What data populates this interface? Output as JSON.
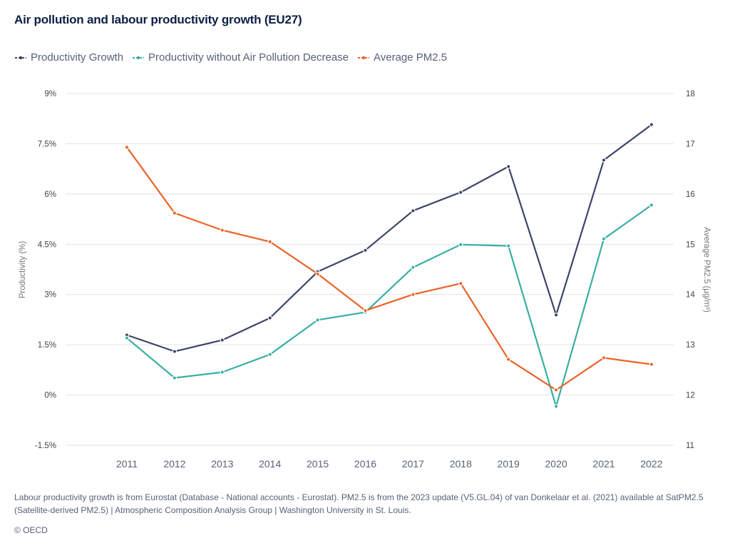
{
  "chart_data": {
    "type": "line",
    "title": "Air pollution and labour productivity growth (EU27)",
    "x": [
      "2011",
      "2012",
      "2013",
      "2014",
      "2015",
      "2016",
      "2017",
      "2018",
      "2019",
      "2020",
      "2021",
      "2022"
    ],
    "ylabel": "Productivity (%)",
    "y2label": "Average PM2.5 (µg/m³)",
    "ylim": [
      -1.5,
      9
    ],
    "y2lim": [
      11,
      18
    ],
    "yticks": [
      -1.5,
      0,
      1.5,
      3,
      4.5,
      6,
      7.5,
      9
    ],
    "ytick_labels": [
      "-1.5%",
      "0%",
      "1.5%",
      "3%",
      "4.5%",
      "6%",
      "7.5%",
      "9%"
    ],
    "y2ticks": [
      11,
      12,
      13,
      14,
      15,
      16,
      17,
      18
    ],
    "y2tick_labels": [
      "11",
      "12",
      "13",
      "14",
      "15",
      "16",
      "17",
      "18"
    ],
    "grid": true,
    "legend_position": "top-left",
    "series": [
      {
        "name": "Productivity Growth",
        "axis": "left",
        "color": "#3d4468",
        "values": [
          1.79,
          1.3,
          1.64,
          2.3,
          3.68,
          4.32,
          5.5,
          6.05,
          6.82,
          2.39,
          7.01,
          8.07
        ]
      },
      {
        "name": "Productivity without Air Pollution Decrease",
        "axis": "left",
        "color": "#3aaea3",
        "values": [
          1.7,
          0.51,
          0.68,
          1.21,
          2.24,
          2.47,
          3.81,
          4.49,
          4.45,
          -0.34,
          4.66,
          5.67
        ]
      },
      {
        "name": "Average PM2.5",
        "axis": "right",
        "color": "#ea6227",
        "values": [
          16.93,
          15.62,
          15.28,
          15.05,
          14.41,
          13.68,
          14.0,
          14.22,
          12.71,
          12.1,
          12.74,
          12.61
        ]
      }
    ]
  },
  "footer": {
    "note": "Labour productivity growth is from Eurostat (Database - National accounts - Eurostat). PM2.5 is from the 2023 update (V5.GL.04) of van Donkelaar et al. (2021) available at SatPM2.5 (Satellite-derived PM2.5) | Atmospheric Composition Analysis Group | Washington University in St. Louis.",
    "copyright": "© OECD"
  }
}
